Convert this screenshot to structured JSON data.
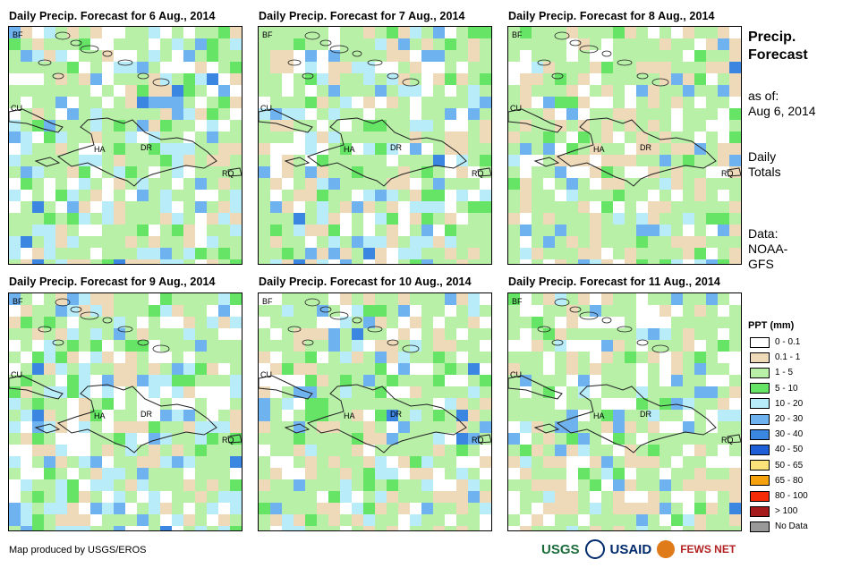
{
  "panels": [
    {
      "title": "Daily Precip. Forecast for 6 Aug., 2014",
      "seed": 11,
      "wet": 0.55
    },
    {
      "title": "Daily Precip. Forecast for 7 Aug., 2014",
      "seed": 23,
      "wet": 0.45
    },
    {
      "title": "Daily Precip. Forecast for 8 Aug., 2014",
      "seed": 37,
      "wet": 0.18
    },
    {
      "title": "Daily Precip. Forecast for 9 Aug., 2014",
      "seed": 41,
      "wet": 0.55
    },
    {
      "title": "Daily Precip. Forecast for 10 Aug., 2014",
      "seed": 53,
      "wet": 0.4
    },
    {
      "title": "Daily Precip. Forecast for 11 Aug., 2014",
      "seed": 67,
      "wet": 0.22
    }
  ],
  "map_labels": {
    "bf": "BF",
    "cu": "CU",
    "ha": "HA",
    "dr": "DR",
    "rq": "RQ"
  },
  "side": {
    "title_line1": "Precip.",
    "title_line2": "Forecast",
    "asof_line1": "as of:",
    "asof_line2": "Aug 6, 2014",
    "daily_line1": "Daily",
    "daily_line2": "Totals",
    "data_line1": "Data:",
    "data_line2": "NOAA-",
    "data_line3": "GFS"
  },
  "legend": {
    "title": "PPT (mm)",
    "items": [
      {
        "label": "0 - 0.1",
        "color": "#ffffff"
      },
      {
        "label": "0.1 - 1",
        "color": "#eed9b8"
      },
      {
        "label": "1 - 5",
        "color": "#b8f0a8"
      },
      {
        "label": "5 - 10",
        "color": "#66e466"
      },
      {
        "label": "10 - 20",
        "color": "#b8ecf8"
      },
      {
        "label": "20 - 30",
        "color": "#6fb2f0"
      },
      {
        "label": "30 - 40",
        "color": "#3a86e0"
      },
      {
        "label": "40 - 50",
        "color": "#1e5ed6"
      },
      {
        "label": "50 - 65",
        "color": "#fbe27a"
      },
      {
        "label": "65 - 80",
        "color": "#f5a20e"
      },
      {
        "label": "80 - 100",
        "color": "#f52a06"
      },
      {
        "label": "> 100",
        "color": "#a51a1a"
      },
      {
        "label": "No Data",
        "color": "#999999"
      }
    ]
  },
  "footer": "Map produced by USGS/EROS",
  "logos": {
    "usgs": "USGS",
    "usaid": "USAID",
    "fews": "FEWS NET"
  }
}
